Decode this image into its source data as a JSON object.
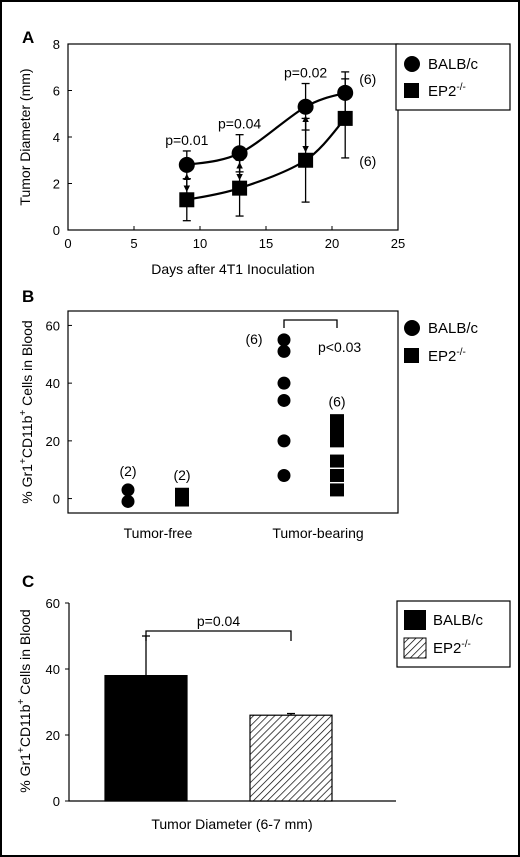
{
  "chart_data": [
    {
      "panel": "A",
      "type": "line",
      "title": "",
      "xlabel": "Days after 4T1 Inoculation",
      "ylabel": "Tumor Diameter (mm)",
      "xlim": [
        0,
        25
      ],
      "ylim": [
        0,
        8
      ],
      "xticks": [
        "0",
        "5",
        "10",
        "15",
        "20",
        "25"
      ],
      "yticks": [
        "0",
        "2",
        "4",
        "6",
        "8"
      ],
      "grid": false,
      "legend_position": "right",
      "series": [
        {
          "name": "BALB/c",
          "marker": "circle",
          "x": [
            9,
            13,
            18,
            21
          ],
          "y": [
            2.8,
            3.3,
            5.3,
            5.9
          ],
          "err": [
            0.6,
            0.8,
            1.0,
            0.9
          ],
          "n_label": "(6)"
        },
        {
          "name": "EP2-/-",
          "name_base": "EP2",
          "name_sup": "-/-",
          "marker": "square",
          "x": [
            9,
            13,
            18,
            21
          ],
          "y": [
            1.3,
            1.8,
            3.0,
            4.8
          ],
          "err": [
            0.9,
            1.2,
            1.8,
            1.7
          ],
          "n_label": "(6)"
        }
      ],
      "annotations": [
        {
          "text": "p=0.01",
          "x": 9
        },
        {
          "text": "p=0.04",
          "x": 13
        },
        {
          "text": "p=0.02",
          "x": 18
        }
      ]
    },
    {
      "panel": "B",
      "type": "scatter",
      "title": "",
      "xlabel": "",
      "ylabel": "% Gr1+CD11b+ Cells in Blood",
      "ylabel_parts": [
        "% Gr1",
        "+",
        "CD11b",
        "+",
        " Cells in Blood"
      ],
      "ylim": [
        -5,
        65
      ],
      "yticks": [
        "0",
        "20",
        "40",
        "60"
      ],
      "categories": [
        "Tumor-free",
        "Tumor-bearing"
      ],
      "grid": false,
      "legend_position": "top-right",
      "series": [
        {
          "name": "BALB/c",
          "marker": "circle",
          "groups": [
            {
              "category": "Tumor-free",
              "values": [
                3,
                -1
              ],
              "n_label": "(2)"
            },
            {
              "category": "Tumor-bearing",
              "values": [
                55,
                51,
                40,
                34,
                20,
                8
              ],
              "n_label": "(6)"
            }
          ]
        },
        {
          "name": "EP2-/-",
          "name_base": "EP2",
          "name_sup": "-/-",
          "marker": "square",
          "groups": [
            {
              "category": "Tumor-free",
              "values": [
                1.5,
                -0.5
              ],
              "n_label": "(2)"
            },
            {
              "category": "Tumor-bearing",
              "values": [
                27,
                24,
                20,
                13,
                8,
                3
              ],
              "n_label": "(6)"
            }
          ]
        }
      ],
      "annotations": [
        {
          "text": "p<0.03"
        }
      ]
    },
    {
      "panel": "C",
      "type": "bar",
      "title": "",
      "xlabel": "Tumor Diameter (6-7 mm)",
      "ylabel": "% Gr1+CD11b+ Cells in Blood",
      "ylabel_parts": [
        "% Gr1",
        "+",
        "CD11b",
        "+",
        " Cells in Blood"
      ],
      "ylim": [
        0,
        60
      ],
      "yticks": [
        "0",
        "20",
        "40",
        "60"
      ],
      "grid": false,
      "legend_position": "right",
      "series": [
        {
          "name": "BALB/c",
          "fill": "#000000",
          "value": 38,
          "err": 12
        },
        {
          "name": "EP2-/-",
          "name_base": "EP2",
          "name_sup": "-/-",
          "fill": "hatched",
          "value": 26,
          "err": 0.5
        }
      ],
      "annotations": [
        {
          "text": "p=0.04"
        }
      ]
    }
  ]
}
